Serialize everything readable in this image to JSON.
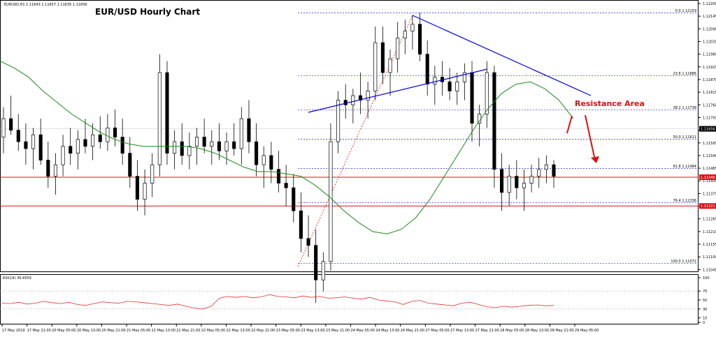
{
  "header": {
    "symbol_line": "EURUSD,H1  1.11643 1.11657 1.11635 1.11656",
    "title": "EUR/USD Hourly Chart"
  },
  "chart_data": {
    "type": "candlestick",
    "symbol": "EURUSD",
    "timeframe": "H1",
    "title": "EUR/USD Hourly Chart",
    "ylim": [
      1.1104,
      1.122
    ],
    "price_ticks": [
      "1.12200",
      "1.12145",
      "1.12090",
      "1.12035",
      "1.11980",
      "1.11925",
      "1.11870",
      "1.11815",
      "1.11760",
      "1.11705",
      "1.11650",
      "1.11595",
      "1.11540",
      "1.11485",
      "1.11430",
      "1.11375",
      "1.11320",
      "1.11265",
      "1.11210",
      "1.11155",
      "1.11100",
      "1.11045"
    ],
    "time_labels": [
      "17 May 2019",
      "17 May 21:00",
      "20 May 05:00",
      "20 May 13:00",
      "20 May 21:00",
      "21 May 05:00",
      "21 May 13:00",
      "21 May 21:00",
      "22 May 05:00",
      "22 May 13:00",
      "22 May 21:00",
      "23 May 05:00",
      "23 May 13:00",
      "23 May 21:00",
      "24 May 05:00",
      "24 May 13:00",
      "24 May 21:00",
      "27 May 05:00",
      "27 May 13:00",
      "27 May 21:00",
      "28 May 05:00",
      "28 May 13:00",
      "28 May 21:00",
      "29 May 05:00"
    ],
    "current_price": "1.11656",
    "fibonacci": [
      {
        "label": "0.0 1.12159",
        "price": 1.12159
      },
      {
        "label": "23.6 1.11886",
        "price": 1.11886
      },
      {
        "label": "38.2 1.11738",
        "price": 1.11738
      },
      {
        "label": "50.0 1.11611",
        "price": 1.11611
      },
      {
        "label": "61.8 1.11484",
        "price": 1.11484
      },
      {
        "label": "76.4 1.11336",
        "price": 1.11336
      },
      {
        "label": "100.0 1.11072",
        "price": 1.11072
      }
    ],
    "horizontal_levels": [
      {
        "price": 1.11446,
        "label": "1.11446",
        "color": "#e01010"
      },
      {
        "price": 1.11321,
        "label": "1.11321",
        "color": "#e01010"
      }
    ],
    "annotation": "Resistance Area",
    "ohlc": [
      [
        1.1162,
        1.1175,
        1.1155,
        1.117
      ],
      [
        1.117,
        1.118,
        1.1163,
        1.1165
      ],
      [
        1.1165,
        1.1172,
        1.1156,
        1.116
      ],
      [
        1.116,
        1.1168,
        1.115,
        1.1157
      ],
      [
        1.1157,
        1.1166,
        1.1148,
        1.1163
      ],
      [
        1.1163,
        1.117,
        1.115,
        1.1152
      ],
      [
        1.1152,
        1.116,
        1.114,
        1.1145
      ],
      [
        1.1145,
        1.1155,
        1.1137,
        1.115
      ],
      [
        1.115,
        1.1163,
        1.1145,
        1.1158
      ],
      [
        1.1158,
        1.1166,
        1.115,
        1.1155
      ],
      [
        1.1155,
        1.1165,
        1.1148,
        1.1161
      ],
      [
        1.1161,
        1.117,
        1.1155,
        1.1158
      ],
      [
        1.1158,
        1.1168,
        1.1152,
        1.1163
      ],
      [
        1.1163,
        1.1171,
        1.1157,
        1.116
      ],
      [
        1.116,
        1.1172,
        1.1156,
        1.1166
      ],
      [
        1.1166,
        1.1174,
        1.1158,
        1.1162
      ],
      [
        1.1162,
        1.117,
        1.115,
        1.1155
      ],
      [
        1.1155,
        1.1162,
        1.114,
        1.1145
      ],
      [
        1.1145,
        1.1152,
        1.113,
        1.1135
      ],
      [
        1.1135,
        1.1148,
        1.1128,
        1.1142
      ],
      [
        1.1142,
        1.1155,
        1.1136,
        1.115
      ],
      [
        1.115,
        1.1198,
        1.1145,
        1.119
      ],
      [
        1.119,
        1.1195,
        1.115,
        1.1155
      ],
      [
        1.1155,
        1.1165,
        1.1148,
        1.116
      ],
      [
        1.116,
        1.1168,
        1.115,
        1.1154
      ],
      [
        1.1154,
        1.1164,
        1.1148,
        1.1158
      ],
      [
        1.1158,
        1.1166,
        1.115,
        1.1162
      ],
      [
        1.1162,
        1.117,
        1.1155,
        1.1158
      ],
      [
        1.1158,
        1.1165,
        1.115,
        1.116
      ],
      [
        1.116,
        1.1168,
        1.1152,
        1.1156
      ],
      [
        1.1156,
        1.1164,
        1.115,
        1.116
      ],
      [
        1.116,
        1.1168,
        1.1154,
        1.1157
      ],
      [
        1.1157,
        1.1175,
        1.115,
        1.117
      ],
      [
        1.117,
        1.1178,
        1.1155,
        1.116
      ],
      [
        1.116,
        1.1168,
        1.1145,
        1.115
      ],
      [
        1.115,
        1.1158,
        1.114,
        1.1154
      ],
      [
        1.1154,
        1.116,
        1.1142,
        1.1148
      ],
      [
        1.1148,
        1.1156,
        1.1138,
        1.1142
      ],
      [
        1.1142,
        1.115,
        1.1132,
        1.114
      ],
      [
        1.114,
        1.1146,
        1.1125,
        1.113
      ],
      [
        1.113,
        1.1138,
        1.1112,
        1.1118
      ],
      [
        1.1118,
        1.1128,
        1.111,
        1.1115
      ],
      [
        1.1115,
        1.1122,
        1.109,
        1.11
      ],
      [
        1.11,
        1.1112,
        1.1095,
        1.1108
      ],
      [
        1.1108,
        1.1168,
        1.1104,
        1.116
      ],
      [
        1.116,
        1.1182,
        1.1155,
        1.1178
      ],
      [
        1.1178,
        1.1185,
        1.117,
        1.1176
      ],
      [
        1.1176,
        1.1183,
        1.1168,
        1.118
      ],
      [
        1.118,
        1.119,
        1.1172,
        1.1178
      ],
      [
        1.1178,
        1.1186,
        1.117,
        1.1182
      ],
      [
        1.1182,
        1.121,
        1.1178,
        1.1203
      ],
      [
        1.1203,
        1.121,
        1.1185,
        1.119
      ],
      [
        1.119,
        1.12,
        1.118,
        1.1196
      ],
      [
        1.1196,
        1.1212,
        1.119,
        1.1205
      ],
      [
        1.1205,
        1.1213,
        1.1198,
        1.1208
      ],
      [
        1.1208,
        1.1215,
        1.12,
        1.1211
      ],
      [
        1.1211,
        1.1216,
        1.1195,
        1.1198
      ],
      [
        1.1198,
        1.1204,
        1.118,
        1.1185
      ],
      [
        1.1185,
        1.1193,
        1.1176,
        1.1188
      ],
      [
        1.1188,
        1.1195,
        1.118,
        1.1186
      ],
      [
        1.1186,
        1.1192,
        1.1178,
        1.1182
      ],
      [
        1.1182,
        1.119,
        1.1176,
        1.1186
      ],
      [
        1.1186,
        1.1194,
        1.1178,
        1.119
      ],
      [
        1.119,
        1.1195,
        1.116,
        1.1168
      ],
      [
        1.1168,
        1.1176,
        1.1158,
        1.1172
      ],
      [
        1.1172,
        1.1195,
        1.1166,
        1.119
      ],
      [
        1.119,
        1.1193,
        1.114,
        1.1148
      ],
      [
        1.1148,
        1.1155,
        1.113,
        1.1138
      ],
      [
        1.1138,
        1.115,
        1.1132,
        1.1145
      ],
      [
        1.1145,
        1.1152,
        1.1135,
        1.114
      ],
      [
        1.114,
        1.1148,
        1.113,
        1.1142
      ],
      [
        1.1142,
        1.115,
        1.1138,
        1.1145
      ],
      [
        1.1145,
        1.1153,
        1.114,
        1.1148
      ],
      [
        1.1148,
        1.1154,
        1.1142,
        1.115
      ],
      [
        1.115,
        1.1152,
        1.114,
        1.1145
      ]
    ],
    "ma_series": [
      1.1195,
      1.1192,
      1.1188,
      1.1182,
      1.1177,
      1.1172,
      1.1168,
      1.1164,
      1.1161,
      1.1159,
      1.1158,
      1.1158,
      1.1158,
      1.1158,
      1.1157,
      1.1155,
      1.1152,
      1.1149,
      1.1147,
      1.1147,
      1.1146,
      1.1145,
      1.1141,
      1.1136,
      1.113,
      1.1125,
      1.1121,
      1.112,
      1.1122,
      1.1127,
      1.1135,
      1.1145,
      1.1155,
      1.1165,
      1.1174,
      1.1181,
      1.1185,
      1.1186,
      1.1183,
      1.1178,
      1.117
    ],
    "rsi": {
      "label": "RSI(14) 39.4559",
      "ylim": [
        0,
        100
      ],
      "ticks": [
        "100",
        "70",
        "50",
        "30",
        "10",
        "0"
      ],
      "levels": [
        70,
        30
      ],
      "values": [
        43,
        42,
        45,
        41,
        43,
        47,
        44,
        42,
        45,
        40,
        38,
        42,
        46,
        44,
        43,
        47,
        46,
        44,
        42,
        40,
        38,
        41,
        36,
        32,
        30,
        36,
        54,
        58,
        56,
        58,
        55,
        57,
        62,
        58,
        57,
        55,
        59,
        56,
        58,
        54,
        55,
        57,
        54,
        52,
        56,
        50,
        48,
        46,
        40,
        47,
        49,
        43,
        41,
        39,
        37,
        43,
        45,
        40,
        35,
        33,
        36,
        34,
        36,
        38,
        39,
        37,
        38
      ]
    }
  }
}
